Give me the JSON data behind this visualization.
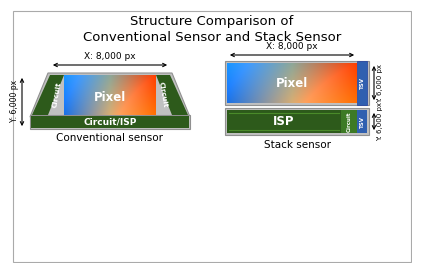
{
  "title": "Structure Comparison of\nConventional Sensor and Stack Sensor",
  "title_fontsize": 9.5,
  "bg_color": "#ffffff",
  "conventional_label": "Conventional sensor",
  "stack_label": "Stack sensor",
  "pixel_label": "Pixel",
  "circuit_label": "Circuit",
  "circuit_isp_label": "Circuit/ISP",
  "isp_label": "ISP",
  "tsv_label": "TSV",
  "x_dim_label": "X: 8,000 px",
  "y_dim_label_conv": "Y: 6,000 px",
  "y_dim_label_stack1": "Y: 6,000 px",
  "y_dim_label_stack2": "Y: 6,000 px",
  "dark_green": "#2d5a1b",
  "medium_green": "#3d7a25",
  "gray_frame": "#c0c0c0",
  "gray_frame_dark": "#909090",
  "blue_tsv": "#3060b0",
  "blue_tsv_light": "#6090d0",
  "white": "#ffffff"
}
